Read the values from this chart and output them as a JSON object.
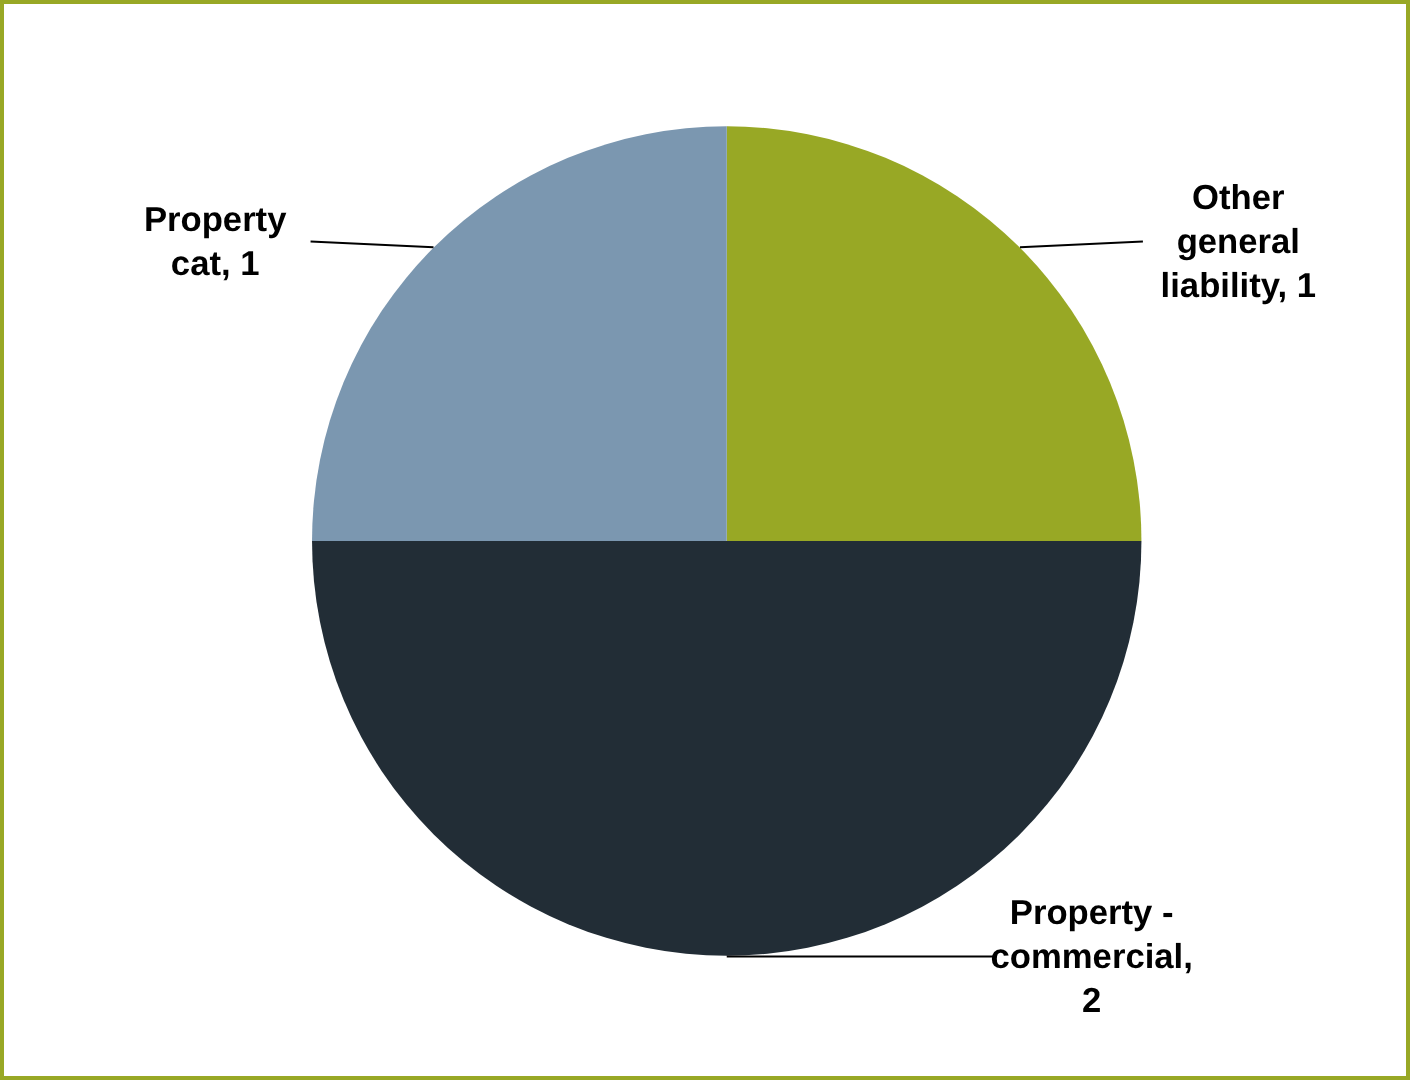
{
  "chart_data": {
    "type": "pie",
    "categories": [
      "Other general liability, 1",
      "Property - commercial, 2",
      "Property cat, 1"
    ],
    "values": [
      1,
      2,
      1
    ],
    "colors": [
      "#98a825",
      "#222d36",
      "#7b97b0"
    ]
  }
}
